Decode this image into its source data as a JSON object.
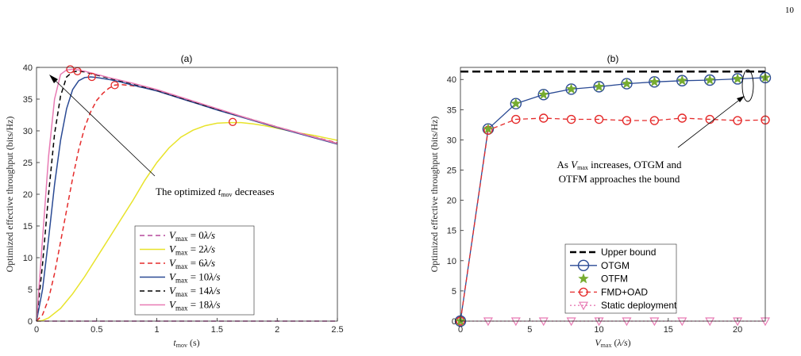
{
  "page_number": "10",
  "chart_data": [
    {
      "type": "line",
      "title": "(a)",
      "xlabel": "t_mov (s)",
      "ylabel": "Optimized effective throughput (bits/Hz)",
      "xlim": [
        0,
        2.5
      ],
      "ylim": [
        0,
        40
      ],
      "xticks": [
        "0",
        "0.5",
        "1",
        "1.5",
        "2",
        "2.5"
      ],
      "yticks": [
        "0",
        "5",
        "10",
        "15",
        "20",
        "25",
        "30",
        "35",
        "40"
      ],
      "grid": false,
      "legend_position": "bottom-right",
      "annotation": "The optimized t_mov decreases",
      "series": [
        {
          "name": "V_max = 0λ/s",
          "color": "#b5489b",
          "dash": "dash",
          "x": [
            0,
            2.5
          ],
          "y": [
            0,
            0
          ],
          "opt": null
        },
        {
          "name": "V_max = 2λ/s",
          "color": "#e8e32a",
          "dash": "solid",
          "x": [
            0,
            0.05,
            0.1,
            0.2,
            0.3,
            0.4,
            0.5,
            0.6,
            0.7,
            0.8,
            0.9,
            1.0,
            1.1,
            1.2,
            1.3,
            1.4,
            1.5,
            1.6,
            1.7,
            1.8,
            1.9,
            2.0,
            2.1,
            2.2,
            2.3,
            2.4,
            2.5
          ],
          "y": [
            0,
            0.1,
            0.5,
            2,
            4.3,
            7,
            10,
            13,
            16,
            19,
            22.2,
            25,
            27.3,
            29,
            30.1,
            30.8,
            31.2,
            31.3,
            31.3,
            31.1,
            30.8,
            30.4,
            30.0,
            29.6,
            29.3,
            28.9,
            28.5
          ],
          "opt": [
            1.63,
            31.4
          ]
        },
        {
          "name": "V_max = 6λ/s",
          "color": "#e52b2b",
          "dash": "dash",
          "x": [
            0,
            0.05,
            0.1,
            0.15,
            0.2,
            0.25,
            0.3,
            0.35,
            0.4,
            0.45,
            0.5,
            0.55,
            0.6,
            0.65,
            0.7,
            0.8,
            0.9,
            1.0,
            1.25,
            1.5,
            1.75,
            2.0,
            2.25,
            2.5
          ],
          "y": [
            0,
            1,
            3.5,
            7.5,
            12.5,
            17.5,
            22.5,
            27,
            30.5,
            33,
            34.8,
            35.9,
            36.7,
            37.2,
            37.3,
            37.1,
            36.8,
            36.3,
            34.8,
            33.4,
            32.0,
            30.6,
            29.3,
            28.1
          ],
          "opt": [
            0.65,
            37.2
          ]
        },
        {
          "name": "V_max = 10λ/s",
          "color": "#2a4a94",
          "dash": "solid",
          "x": [
            0,
            0.05,
            0.1,
            0.15,
            0.2,
            0.25,
            0.3,
            0.35,
            0.4,
            0.45,
            0.5,
            0.6,
            0.7,
            0.8,
            1.0,
            1.25,
            1.5,
            1.75,
            2.0,
            2.25,
            2.5
          ],
          "y": [
            0,
            5,
            13,
            21.5,
            28.5,
            33.5,
            36.5,
            37.9,
            38.4,
            38.5,
            38.4,
            38.1,
            37.7,
            37.2,
            36.3,
            34.8,
            33.3,
            31.9,
            30.5,
            29.2,
            27.9
          ],
          "opt": [
            0.46,
            38.5
          ]
        },
        {
          "name": "V_max = 14λ/s",
          "color": "#000000",
          "dash": "dash",
          "x": [
            0,
            0.05,
            0.1,
            0.15,
            0.2,
            0.25,
            0.3,
            0.35,
            0.4,
            0.5,
            0.6,
            0.8,
            1.0,
            1.25,
            1.5,
            1.75,
            2.0,
            2.25,
            2.5
          ],
          "y": [
            0,
            9,
            20,
            29.5,
            35.5,
            38.5,
            39.3,
            39.4,
            39.3,
            38.8,
            38.3,
            37.4,
            36.4,
            34.9,
            33.4,
            32.0,
            30.6,
            29.3,
            28.0
          ],
          "opt": [
            0.34,
            39.4
          ]
        },
        {
          "name": "V_max = 18λ/s",
          "color": "#e87bb4",
          "dash": "solid",
          "x": [
            0,
            0.05,
            0.1,
            0.15,
            0.2,
            0.25,
            0.3,
            0.35,
            0.4,
            0.5,
            0.6,
            0.8,
            1.0,
            1.25,
            1.5,
            1.75,
            2.0,
            2.25,
            2.5
          ],
          "y": [
            0,
            13,
            26,
            35,
            38.9,
            39.6,
            39.7,
            39.6,
            39.4,
            38.9,
            38.4,
            37.5,
            36.5,
            35.0,
            33.5,
            32.0,
            30.6,
            29.3,
            28.0
          ],
          "opt": [
            0.28,
            39.7
          ]
        }
      ]
    },
    {
      "type": "line",
      "title": "(b)",
      "xlabel": "V_max (λ/s)",
      "ylabel": "Optimized effective throughput (bits/Hz)",
      "xlim": [
        0,
        22
      ],
      "ylim": [
        0,
        42
      ],
      "xticks": [
        "0",
        "5",
        "10",
        "15",
        "20"
      ],
      "yticks": [
        "0",
        "5",
        "10",
        "15",
        "20",
        "25",
        "30",
        "35",
        "40"
      ],
      "grid": false,
      "legend_position": "bottom-center",
      "annotation": [
        "As V_max increases, OTGM and",
        "OTFM approaches the bound"
      ],
      "x": [
        0,
        2,
        4,
        6,
        8,
        10,
        12,
        14,
        16,
        18,
        20,
        22
      ],
      "series": [
        {
          "name": "Upper bound",
          "color": "#000000",
          "dash": "dash",
          "marker": "none",
          "y": [
            41.3,
            41.3,
            41.3,
            41.3,
            41.3,
            41.3,
            41.3,
            41.3,
            41.3,
            41.3,
            41.3,
            41.3
          ]
        },
        {
          "name": "OTGM",
          "color": "#2a4a94",
          "dash": "solid",
          "marker": "circle",
          "y": [
            0,
            31.8,
            36.0,
            37.5,
            38.4,
            38.8,
            39.3,
            39.6,
            39.8,
            39.9,
            40.1,
            40.3
          ]
        },
        {
          "name": "OTFM",
          "color": "#77ac30",
          "dash": "solid",
          "marker": "star",
          "y": [
            0,
            31.8,
            36.0,
            37.5,
            38.4,
            38.8,
            39.3,
            39.6,
            39.8,
            39.9,
            40.1,
            40.3
          ]
        },
        {
          "name": "FMD+OAD",
          "color": "#e52b2b",
          "dash": "dash",
          "marker": "circle",
          "y": [
            0,
            31.6,
            33.4,
            33.6,
            33.4,
            33.4,
            33.2,
            33.2,
            33.6,
            33.4,
            33.2,
            33.3
          ]
        },
        {
          "name": "Static deployment",
          "color": "#e87bb4",
          "dash": "dot",
          "marker": "triangle-down",
          "y": [
            0,
            0,
            0,
            0,
            0,
            0,
            0,
            0,
            0,
            0,
            0,
            0
          ]
        }
      ]
    }
  ]
}
